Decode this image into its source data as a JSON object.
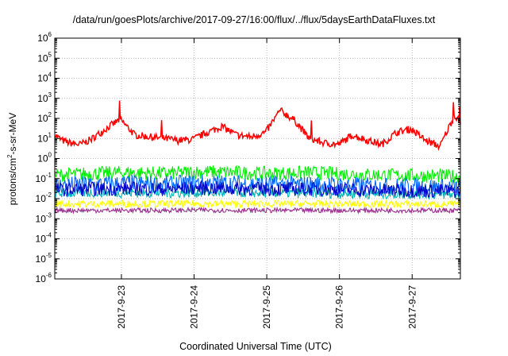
{
  "chart_data": {
    "type": "line",
    "title": "/data/run/goesPlots/archive/2017-09-27/16:00/flux/../flux/5daysEarthDataFluxes.txt",
    "xlabel": "Coordinated Universal Time (UTC)",
    "ylabel_main": "protons/cm",
    "ylabel_sup": "2",
    "ylabel_tail": "-s-sr-MeV",
    "yscale": "log",
    "ylim_exp": [
      -6,
      6
    ],
    "y_ticks": [
      {
        "base": "10",
        "exp": "6"
      },
      {
        "base": "10",
        "exp": "5"
      },
      {
        "base": "10",
        "exp": "4"
      },
      {
        "base": "10",
        "exp": "3"
      },
      {
        "base": "10",
        "exp": "2"
      },
      {
        "base": "10",
        "exp": "1"
      },
      {
        "base": "10",
        "exp": "0"
      },
      {
        "base": "10",
        "exp": "-1"
      },
      {
        "base": "10",
        "exp": "-2"
      },
      {
        "base": "10",
        "exp": "-3"
      },
      {
        "base": "10",
        "exp": "-4"
      },
      {
        "base": "10",
        "exp": "-5"
      },
      {
        "base": "10",
        "exp": "-6"
      }
    ],
    "x_range_days": [
      "2017-09-22 02:00",
      "2017-09-27 16:00"
    ],
    "x_ticks": [
      "2017-9-23",
      "2017-9-24",
      "2017-9-25",
      "2017-9-26",
      "2017-9-27"
    ],
    "grid": true,
    "series": [
      {
        "color": "#ff0000",
        "x": [
          0,
          0.1,
          0.2,
          0.35,
          0.5,
          0.7,
          0.9,
          1.1,
          1.3,
          1.5,
          1.7,
          1.9,
          2.1,
          2.3,
          2.5,
          2.7,
          2.9,
          3.1,
          3.3,
          3.5,
          3.7,
          3.9,
          4.1,
          4.3,
          4.5,
          4.7,
          4.9,
          5.1,
          5.3,
          5.5,
          5.58
        ],
        "y": [
          15,
          8,
          6,
          5,
          9,
          30,
          90,
          15,
          12,
          10,
          8,
          9,
          20,
          40,
          15,
          12,
          20,
          250,
          80,
          10,
          6,
          5,
          15,
          8,
          5,
          20,
          30,
          8,
          4,
          150,
          60
        ]
      },
      {
        "color": "#00ee00",
        "x": [
          0,
          0.5,
          1,
          1.5,
          2,
          2.5,
          3,
          3.5,
          4,
          4.5,
          5,
          5.58
        ],
        "y": [
          0.15,
          0.18,
          0.2,
          0.18,
          0.22,
          0.2,
          0.18,
          0.2,
          0.17,
          0.15,
          0.14,
          0.13
        ]
      },
      {
        "color": "#0066ff",
        "x": [
          0,
          0.5,
          1,
          1.5,
          2,
          2.5,
          3,
          3.5,
          4,
          4.5,
          5,
          5.58
        ],
        "y": [
          0.045,
          0.05,
          0.055,
          0.05,
          0.06,
          0.055,
          0.05,
          0.05,
          0.045,
          0.04,
          0.04,
          0.035
        ]
      },
      {
        "color": "#00b4b4",
        "x": [
          0,
          0.5,
          1,
          1.5,
          2,
          2.5,
          3,
          3.5,
          4,
          4.5,
          5,
          5.58
        ],
        "y": [
          0.018,
          0.02,
          0.02,
          0.019,
          0.02,
          0.02,
          0.019,
          0.019,
          0.018,
          0.017,
          0.017,
          0.016
        ]
      },
      {
        "color": "#0000c8",
        "x": [
          0,
          0.5,
          1,
          1.5,
          2,
          2.5,
          3,
          3.5,
          4,
          4.5,
          5,
          5.58
        ],
        "y": [
          0.028,
          0.03,
          0.032,
          0.03,
          0.034,
          0.032,
          0.03,
          0.03,
          0.028,
          0.026,
          0.025,
          0.024
        ]
      },
      {
        "color": "#ffff00",
        "x": [
          0,
          0.5,
          1,
          1.5,
          2,
          2.5,
          3,
          3.5,
          4,
          4.5,
          5,
          5.58
        ],
        "y": [
          0.0055,
          0.0055,
          0.0056,
          0.0055,
          0.0056,
          0.0055,
          0.0055,
          0.0055,
          0.0054,
          0.0054,
          0.0054,
          0.0053
        ]
      },
      {
        "color": "#9a2e8e",
        "x": [
          0,
          0.5,
          1,
          1.5,
          2,
          2.5,
          3,
          3.5,
          4,
          4.5,
          5,
          5.58
        ],
        "y": [
          0.0026,
          0.0026,
          0.0026,
          0.0026,
          0.0027,
          0.0026,
          0.0026,
          0.0026,
          0.0026,
          0.0026,
          0.0026,
          0.0026
        ]
      }
    ]
  }
}
